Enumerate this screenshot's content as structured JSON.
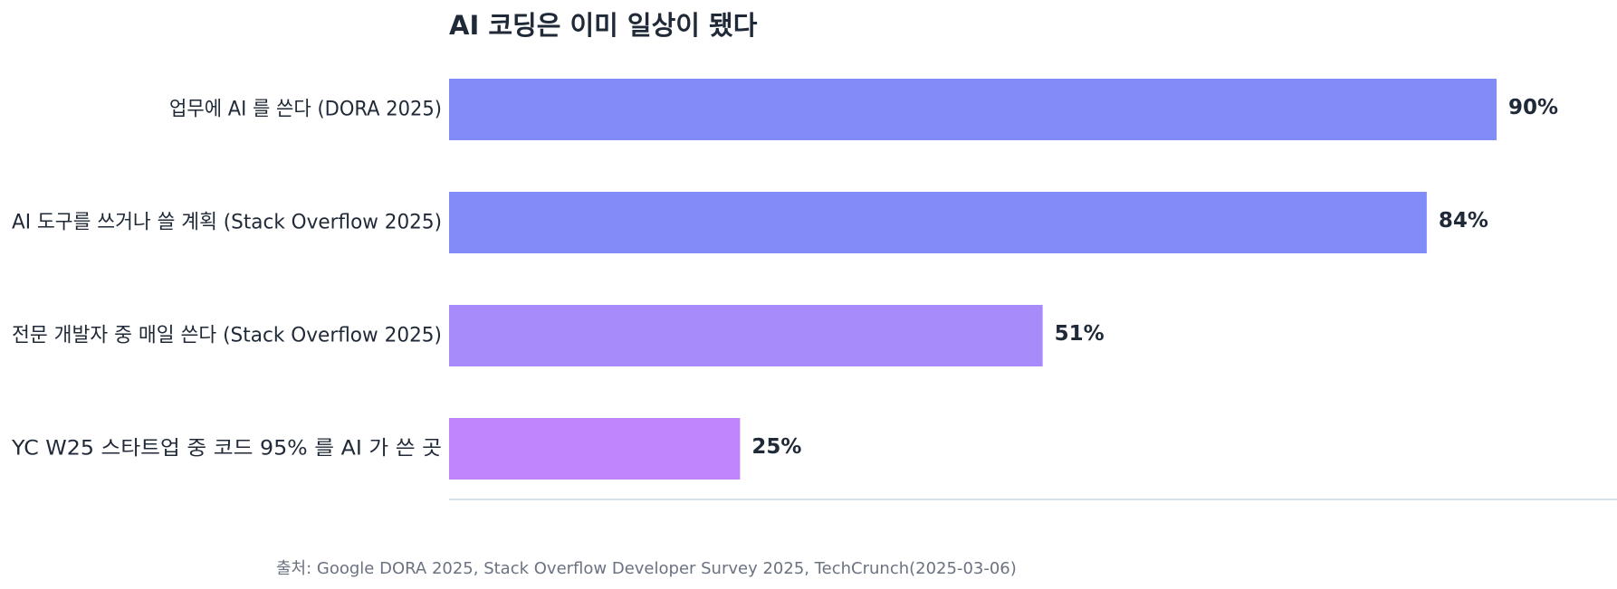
{
  "chart_data": {
    "type": "bar",
    "orientation": "horizontal",
    "title": "AI 코딩은 이미 일상이 됐다",
    "categories": [
      "업무에 AI 를 쓴다 (DORA 2025)",
      "AI 도구를 쓰거나 쓸 계획 (Stack Overflow 2025)",
      "전문 개발자 중 매일 쓴다 (Stack Overflow 2025)",
      "YC W25 스타트업 중 코드 95% 를 AI 가 쓴 곳"
    ],
    "values": [
      90,
      84,
      51,
      25
    ],
    "value_labels": [
      "90%",
      "84%",
      "51%",
      "25%"
    ],
    "bar_colors": [
      "#818cf8",
      "#818cf8",
      "#a78bfa",
      "#c084fc"
    ],
    "xlim": [
      0,
      100
    ],
    "grid": false,
    "legend": "none",
    "xlabel": "",
    "ylabel": "",
    "source": "출처: Google DORA 2025, Stack Overflow Developer Survey 2025, TechCrunch(2025-03-06)"
  },
  "colors": {
    "text": "#1f2937",
    "source_text": "#6b7280",
    "axis_line": "#cbd5e1"
  }
}
